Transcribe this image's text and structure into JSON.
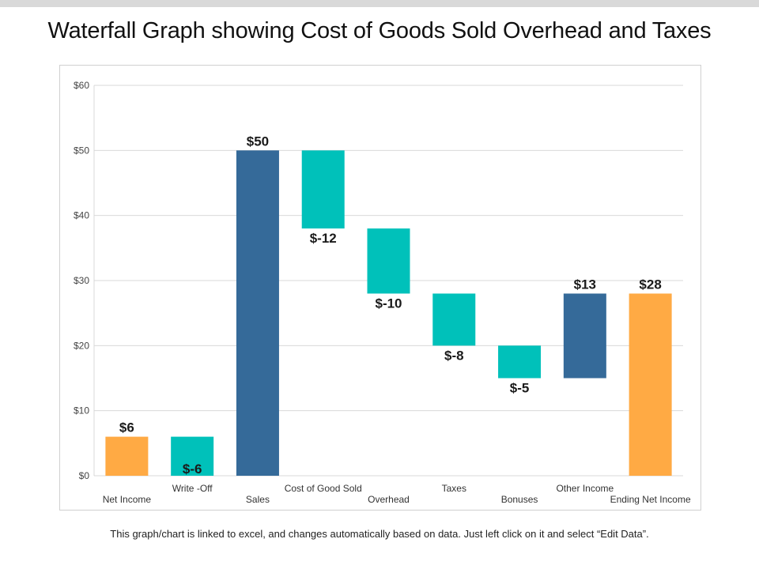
{
  "page": {
    "title": "Waterfall Graph showing Cost of Goods Sold Overhead and Taxes",
    "footnote": "This graph/chart is linked to excel, and changes automatically based on data. Just left click on it and select “Edit Data”."
  },
  "chart_data": {
    "type": "bar",
    "subtype": "waterfall",
    "categories": [
      "Net Income",
      "Write -Off",
      "Sales",
      "Cost of Good Sold",
      "Overhead",
      "Taxes",
      "Bonuses",
      "Other Income",
      "Ending Net Income"
    ],
    "base": [
      0,
      0,
      0,
      38,
      28,
      20,
      15,
      15,
      0
    ],
    "values": [
      6,
      6,
      50,
      12,
      10,
      8,
      5,
      13,
      28
    ],
    "labels": [
      "$6",
      "$-6",
      "$50",
      "$-12",
      "$-10",
      "$-8",
      "$-5",
      "$13",
      "$28"
    ],
    "label_position": [
      "above",
      "inside",
      "above",
      "below",
      "below",
      "below",
      "below",
      "above",
      "above"
    ],
    "kinds": [
      "total",
      "decrease",
      "increase",
      "decrease",
      "decrease",
      "decrease",
      "decrease",
      "increase",
      "total"
    ],
    "colors": {
      "total": "#FFAA44",
      "increase": "#356A99",
      "decrease": "#00C1BA",
      "grid": "#D9D9D9"
    },
    "yticks": [
      "$0",
      "$10",
      "$20",
      "$30",
      "$40",
      "$50",
      "$60"
    ],
    "ylim": [
      0,
      60
    ],
    "grid": true,
    "title": "",
    "xlabel": "",
    "ylabel": ""
  }
}
